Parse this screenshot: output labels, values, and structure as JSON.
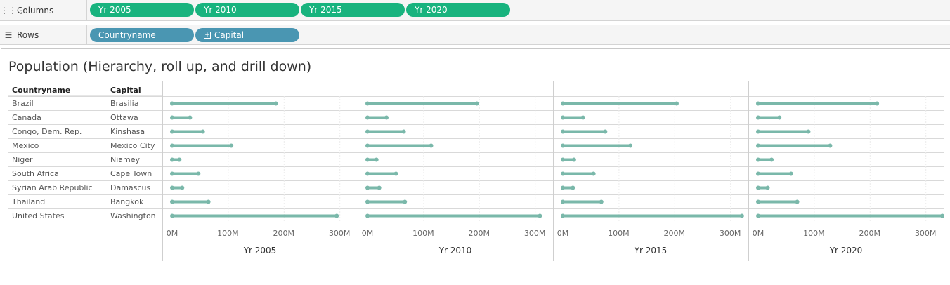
{
  "shelves": {
    "columns": {
      "label": "Columns",
      "icon": "column-shelf-icon",
      "pills": [
        "Yr 2005",
        "Yr 2010",
        "Yr 2015",
        "Yr 2020"
      ]
    },
    "rows": {
      "label": "Rows",
      "icon": "row-shelf-icon",
      "pills": [
        "Countryname",
        "Capital"
      ]
    }
  },
  "colors": {
    "bar": "#7ab8aa",
    "pill_measure": "#18b37e",
    "pill_dimension": "#4a96b2"
  },
  "chart_data": {
    "type": "bar",
    "title": "Population (Hierarchy, roll up, and drill down)",
    "row_headers": [
      "Countryname",
      "Capital"
    ],
    "countries": [
      "Brazil",
      "Canada",
      "Congo, Dem. Rep.",
      "Mexico",
      "Niger",
      "South Africa",
      "Syrian Arab Republic",
      "Thailand",
      "United States"
    ],
    "capitals": [
      "Brasilia",
      "Ottawa",
      "Kinshasa",
      "Mexico City",
      "Niamey",
      "Cape Town",
      "Damascus",
      "Bangkok",
      "Washington"
    ],
    "series": [
      {
        "name": "Yr 2005",
        "values": [
          186,
          32,
          55,
          106,
          13,
          47,
          18,
          65,
          295
        ]
      },
      {
        "name": "Yr 2010",
        "values": [
          196,
          34,
          65,
          114,
          16,
          51,
          21,
          67,
          309
        ]
      },
      {
        "name": "Yr 2015",
        "values": [
          204,
          36,
          76,
          121,
          20,
          55,
          18,
          69,
          321
        ]
      },
      {
        "name": "Yr 2020",
        "values": [
          213,
          38,
          90,
          129,
          24,
          59,
          17,
          70,
          330
        ]
      }
    ],
    "value_unit": "M",
    "xlim": [
      0,
      335
    ],
    "x_ticks": [
      "0M",
      "100M",
      "200M",
      "300M"
    ],
    "tick_values": [
      0,
      100,
      200,
      300
    ],
    "grid": true,
    "legend": "none"
  }
}
